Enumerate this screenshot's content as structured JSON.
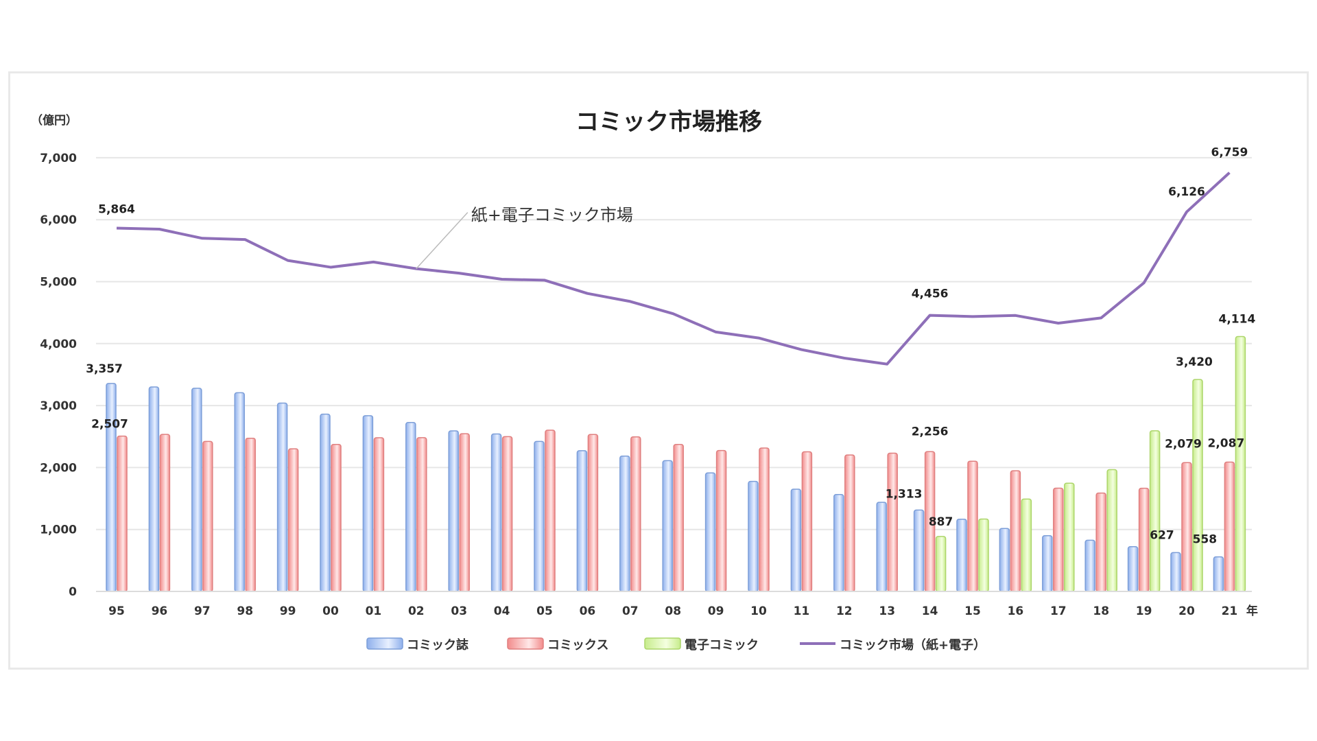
{
  "chart_data": {
    "type": "bar",
    "title": "コミック市場推移",
    "unit_label": "（億円）",
    "xlabel": "年",
    "ylabel": "億円",
    "ylim": [
      0,
      7000
    ],
    "yticks": [
      "0",
      "1,000",
      "2,000",
      "3,000",
      "4,000",
      "5,000",
      "6,000",
      "7,000"
    ],
    "grid": true,
    "legend_position": "bottom",
    "categories": [
      "95",
      "96",
      "97",
      "98",
      "99",
      "00",
      "01",
      "02",
      "03",
      "04",
      "05",
      "06",
      "07",
      "08",
      "09",
      "10",
      "11",
      "12",
      "13",
      "14",
      "15",
      "16",
      "17",
      "18",
      "19",
      "20",
      "21"
    ],
    "series": [
      {
        "name": "コミック誌",
        "type": "bar",
        "color": "#a9c4f0",
        "values": [
          3357,
          3300,
          3279,
          3207,
          3040,
          2861,
          2837,
          2727,
          2591,
          2541,
          2421,
          2271,
          2185,
          2111,
          1913,
          1776,
          1650,
          1564,
          1438,
          1313,
          1166,
          1016,
          900,
          826,
          722,
          627,
          558
        ]
      },
      {
        "name": "コミックス",
        "type": "bar",
        "color": "#f4a6a6",
        "values": [
          2507,
          2535,
          2421,
          2473,
          2302,
          2372,
          2480,
          2482,
          2546,
          2498,
          2602,
          2533,
          2495,
          2372,
          2274,
          2315,
          2253,
          2202,
          2231,
          2256,
          2102,
          1947,
          1666,
          1588,
          1665,
          2079,
          2087
        ]
      },
      {
        "name": "電子コミック",
        "type": "bar",
        "color": "#d4f0a4",
        "values": [
          null,
          null,
          null,
          null,
          null,
          null,
          null,
          null,
          null,
          null,
          null,
          null,
          null,
          null,
          null,
          null,
          null,
          null,
          null,
          887,
          1169,
          1491,
          1747,
          1965,
          2593,
          3420,
          4114
        ]
      },
      {
        "name": "コミック市場（紙+電子）",
        "type": "line",
        "color": "#8e6fb8",
        "values": [
          5864,
          5847,
          5700,
          5680,
          5342,
          5233,
          5317,
          5209,
          5137,
          5039,
          5023,
          4810,
          4680,
          4483,
          4187,
          4091,
          3903,
          3766,
          3669,
          4456,
          4437,
          4454,
          4330,
          4414,
          4980,
          6126,
          6759
        ]
      }
    ],
    "data_labels": [
      {
        "series": 0,
        "index": 0,
        "text": "3,357"
      },
      {
        "series": 1,
        "index": 0,
        "text": "2,507"
      },
      {
        "series": 3,
        "index": 0,
        "text": "5,864"
      },
      {
        "series": 3,
        "index": 19,
        "text": "4,456"
      },
      {
        "series": 1,
        "index": 19,
        "text": "2,256"
      },
      {
        "series": 0,
        "index": 19,
        "text": "1,313"
      },
      {
        "series": 2,
        "index": 19,
        "text": "887"
      },
      {
        "series": 3,
        "index": 25,
        "text": "6,126"
      },
      {
        "series": 2,
        "index": 25,
        "text": "3,420"
      },
      {
        "series": 1,
        "index": 25,
        "text": "2,079"
      },
      {
        "series": 0,
        "index": 25,
        "text": "627"
      },
      {
        "series": 3,
        "index": 26,
        "text": "6,759"
      },
      {
        "series": 2,
        "index": 26,
        "text": "4,114"
      },
      {
        "series": 1,
        "index": 26,
        "text": "2,087"
      },
      {
        "series": 0,
        "index": 26,
        "text": "558"
      }
    ],
    "annotations": [
      {
        "text": "紙+電子コミック市場",
        "points_to_index": 7
      }
    ]
  }
}
